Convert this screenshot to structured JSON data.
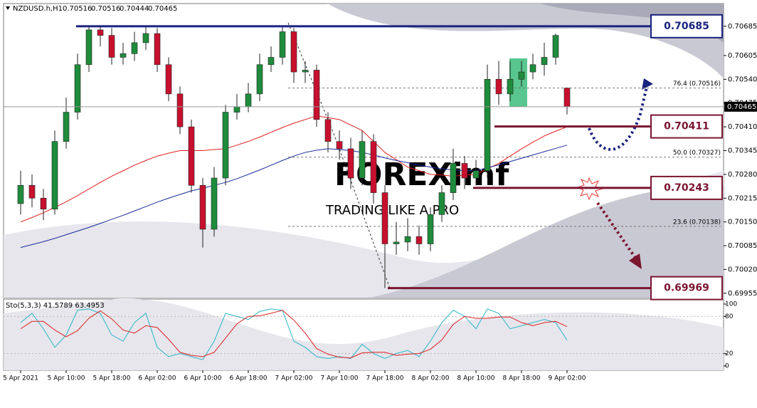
{
  "chart_data": {
    "type": "candlestick",
    "title": "NZDUSD.h,H1",
    "quote": [
      "0.70516",
      "0.70516",
      "0.70444",
      "0.70465"
    ],
    "watermark": {
      "brand": "FOREXimf",
      "tagline": "TRADING LIKE A PRO"
    },
    "categories": [
      "5 Apr 2021",
      null,
      null,
      null,
      "5 Apr 10:00",
      null,
      null,
      null,
      "5 Apr 18:00",
      null,
      null,
      null,
      "6 Apr 02:00",
      null,
      null,
      null,
      "6 Apr 10:00",
      null,
      null,
      null,
      "6 Apr 18:00",
      null,
      null,
      null,
      "7 Apr 02:00",
      null,
      null,
      null,
      "7 Apr 10:00",
      null,
      null,
      null,
      "7 Apr 18:00",
      null,
      null,
      null,
      "8 Apr 02:00",
      null,
      null,
      null,
      "8 Apr 10:00",
      null,
      null,
      null,
      "8 Apr 18:00",
      null,
      null,
      null,
      "9 Apr 02:00"
    ],
    "open": [
      0.702,
      0.7025,
      0.70215,
      0.70185,
      0.7037,
      0.7045,
      0.7058,
      0.70675,
      0.7066,
      0.706,
      0.7061,
      0.7064,
      0.70665,
      0.7058,
      0.705,
      0.7041,
      0.7025,
      0.7013,
      0.7027,
      0.7045,
      0.70465,
      0.705,
      0.7058,
      0.706,
      0.7067,
      0.7056,
      0.70565,
      0.7043,
      0.7037,
      0.7035,
      0.7027,
      0.7037,
      0.7023,
      0.7009,
      0.70095,
      0.7011,
      0.7009,
      0.7017,
      0.7023,
      0.7031,
      0.7027,
      0.7029,
      0.7054,
      0.705,
      0.7054,
      0.7056,
      0.7058,
      0.706,
      0.70516
    ],
    "high": [
      0.7029,
      0.7028,
      0.7024,
      0.704,
      0.7049,
      0.7061,
      0.70685,
      0.70685,
      0.7068,
      0.7064,
      0.7067,
      0.70685,
      0.7068,
      0.706,
      0.7052,
      0.7043,
      0.7027,
      0.703,
      0.7047,
      0.705,
      0.7053,
      0.7061,
      0.7063,
      0.70685,
      0.7068,
      0.7059,
      0.7058,
      0.7045,
      0.704,
      0.7038,
      0.704,
      0.7039,
      0.7025,
      0.7015,
      0.7016,
      0.7014,
      0.7019,
      0.7025,
      0.7035,
      0.7033,
      0.7032,
      0.7058,
      0.7059,
      0.7059,
      0.7059,
      0.7061,
      0.7064,
      0.70665,
      0.70516
    ],
    "low": [
      0.7017,
      0.7019,
      0.70155,
      0.7017,
      0.7035,
      0.7043,
      0.7056,
      0.7063,
      0.7058,
      0.7058,
      0.7059,
      0.7062,
      0.7056,
      0.7048,
      0.7039,
      0.7023,
      0.7008,
      0.7011,
      0.7025,
      0.7043,
      0.7045,
      0.7048,
      0.7056,
      0.7058,
      0.7053,
      0.7053,
      0.7041,
      0.7034,
      0.7032,
      0.7024,
      0.7025,
      0.702,
      0.69969,
      0.7006,
      0.7007,
      0.7006,
      0.7007,
      0.7015,
      0.7021,
      0.7024,
      0.7025,
      0.7027,
      0.7047,
      0.7048,
      0.7052,
      0.7054,
      0.7055,
      0.7058,
      0.70444
    ],
    "close": [
      0.7025,
      0.70215,
      0.70185,
      0.7037,
      0.7045,
      0.7058,
      0.70675,
      0.7066,
      0.706,
      0.7061,
      0.7064,
      0.70665,
      0.7058,
      0.705,
      0.7041,
      0.7025,
      0.7013,
      0.7027,
      0.7045,
      0.70465,
      0.705,
      0.7058,
      0.706,
      0.7067,
      0.7056,
      0.70565,
      0.7043,
      0.7037,
      0.7035,
      0.7027,
      0.7037,
      0.7023,
      0.7009,
      0.70095,
      0.7011,
      0.7009,
      0.7017,
      0.7023,
      0.7031,
      0.7027,
      0.7029,
      0.7054,
      0.705,
      0.7054,
      0.7056,
      0.7058,
      0.706,
      0.7066,
      0.70465
    ],
    "up_color": "#1e8c3c",
    "down_color": "#c8102e",
    "series": [
      {
        "color": "#e02020",
        "values": [
          0.7015,
          0.70162,
          0.70175,
          0.7019,
          0.70205,
          0.70222,
          0.7024,
          0.70258,
          0.70275,
          0.7029,
          0.70305,
          0.70318,
          0.7033,
          0.70338,
          0.70345,
          0.70345,
          0.70345,
          0.70348,
          0.7035,
          0.7036,
          0.7037,
          0.70382,
          0.70395,
          0.70408,
          0.7042,
          0.7043,
          0.7044,
          0.70435,
          0.7043,
          0.70415,
          0.704,
          0.7037,
          0.7034,
          0.7032,
          0.703,
          0.7029,
          0.7028,
          0.70278,
          0.70275,
          0.70278,
          0.7028,
          0.70295,
          0.7031,
          0.7033,
          0.7035,
          0.70368,
          0.70385,
          0.70398,
          0.7041
        ]
      },
      {
        "color": "#1c2a9c",
        "values": [
          0.7008,
          0.70088,
          0.70096,
          0.70105,
          0.70115,
          0.70125,
          0.70135,
          0.70146,
          0.70157,
          0.70168,
          0.7018,
          0.70192,
          0.70204,
          0.70215,
          0.70225,
          0.70235,
          0.70242,
          0.7025,
          0.70258,
          0.70268,
          0.7028,
          0.70292,
          0.70305,
          0.70318,
          0.7033,
          0.7034,
          0.70346,
          0.7035,
          0.70348,
          0.70345,
          0.7034,
          0.70333,
          0.70325,
          0.70318,
          0.70312,
          0.70305,
          0.703,
          0.70295,
          0.70292,
          0.7029,
          0.7029,
          0.70298,
          0.70306,
          0.70315,
          0.70324,
          0.70333,
          0.70342,
          0.70351,
          0.7036
        ]
      }
    ],
    "ylim": [
      0.69943,
      0.70747
    ],
    "yticks": [
      0.70685,
      0.70605,
      {
        "value": 0.7054,
        "label": "0.70540"
      },
      0.70475,
      {
        "value": 0.7041,
        "label": "0.70410"
      },
      0.70345,
      {
        "value": 0.7028,
        "label": "0.70280"
      },
      0.70215,
      {
        "value": 0.7015,
        "label": "0.70150"
      },
      0.70085,
      {
        "value": 0.7002,
        "label": "0.70020"
      },
      0.69955
    ],
    "current_price": 0.70465,
    "levels": [
      {
        "price": 0.70685,
        "color": "#1a237e"
      },
      {
        "price": 0.70411,
        "color": "#7b1530"
      },
      {
        "price": 0.70243,
        "color": "#7b1530"
      },
      {
        "price": 0.69969,
        "color": "#7b1530"
      }
    ],
    "fib": [
      {
        "price": 0.70516,
        "label": "76.4 (0.70516)"
      },
      {
        "price": 0.70327,
        "label": "50.0 (0.70327)"
      },
      {
        "price": 0.70138,
        "label": "23.6 (0.70138)"
      }
    ],
    "stoch": {
      "title": "Sto(5,3,3) 41.5789 63.4953",
      "ylim": [
        -7,
        108
      ],
      "yticks": [
        100,
        80,
        20,
        0
      ],
      "levels": [
        80,
        20
      ],
      "series": [
        {
          "color": "#2bb5c8",
          "values": [
            70,
            85,
            60,
            30,
            50,
            90,
            92,
            85,
            50,
            40,
            70,
            85,
            30,
            15,
            20,
            15,
            10,
            40,
            85,
            80,
            75,
            88,
            92,
            90,
            40,
            30,
            15,
            12,
            15,
            12,
            35,
            20,
            12,
            20,
            25,
            15,
            40,
            70,
            90,
            80,
            60,
            92,
            85,
            60,
            65,
            70,
            75,
            70,
            41.5789
          ]
        },
        {
          "color": "#e02020",
          "values": [
            60,
            72,
            72,
            58,
            47,
            57,
            77,
            89,
            76,
            58,
            53,
            65,
            62,
            43,
            22,
            17,
            15,
            22,
            45,
            68,
            80,
            81,
            85,
            90,
            74,
            53,
            28,
            19,
            14,
            13,
            21,
            22,
            22,
            17,
            19,
            20,
            27,
            42,
            67,
            80,
            77,
            77,
            79,
            79,
            70,
            65,
            70,
            72,
            63.4953
          ]
        }
      ]
    }
  }
}
